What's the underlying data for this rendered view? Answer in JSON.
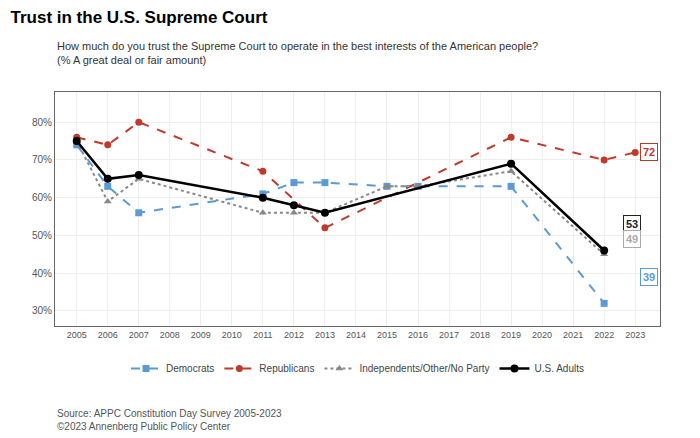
{
  "chart_data": {
    "type": "line",
    "title": "Trust in the U.S. Supreme Court",
    "subtitle": "How much do you trust the Supreme Court to operate in the best interests of the American people?\n(% A great deal or fair amount)",
    "source": "Source: APPC Constitution Day Survey 2005-2023\n©2023 Annenberg Public Policy Center",
    "series": [
      {
        "name": "Democrats",
        "color": "#5b9bd5",
        "marker": "square",
        "line_style": "dash",
        "x": [
          2005,
          2006,
          2007,
          2011,
          2012,
          2013,
          2015,
          2016,
          2019,
          2022
        ],
        "values": [
          74,
          63,
          56,
          61,
          64,
          64,
          63,
          63,
          63,
          32
        ]
      },
      {
        "name": "Republicans",
        "color": "#c0392b",
        "marker": "circle",
        "line_style": "dash",
        "x": [
          2005,
          2006,
          2007,
          2011,
          2013,
          2019,
          2022,
          2023
        ],
        "values": [
          76,
          74,
          80,
          67,
          52,
          76,
          70,
          72
        ]
      },
      {
        "name": "Independents/Other/No Party",
        "color": "#888888",
        "marker": "triangle-up",
        "line_style": "dot",
        "x": [
          2005,
          2006,
          2007,
          2011,
          2012,
          2013,
          2015,
          2016,
          2019,
          2022
        ],
        "values": [
          75,
          59,
          65,
          56,
          56,
          56,
          63,
          63,
          67,
          45
        ]
      },
      {
        "name": "U.S. Adults",
        "color": "#000000",
        "marker": "circle",
        "line_style": "solid",
        "x": [
          2005,
          2006,
          2007,
          2011,
          2012,
          2013,
          2019,
          2022
        ],
        "values": [
          75,
          65,
          66,
          60,
          58,
          56,
          69,
          46
        ]
      }
    ],
    "annotations": [
      {
        "text": "72",
        "x": 2023.15,
        "y": 72,
        "color": "#c0392b"
      },
      {
        "text": "53",
        "x": 2022.6,
        "y": 53,
        "color": "#222222"
      },
      {
        "text": "49",
        "x": 2022.6,
        "y": 49,
        "color": "#aaaaaa"
      },
      {
        "text": "39",
        "x": 2023.15,
        "y": 39,
        "color": "#5b9bd5"
      }
    ],
    "xlim": [
      2004.3,
      2023.8
    ],
    "xticks": [
      2005,
      2006,
      2007,
      2008,
      2009,
      2010,
      2011,
      2012,
      2013,
      2014,
      2015,
      2016,
      2017,
      2018,
      2019,
      2020,
      2021,
      2022,
      2023
    ],
    "ylim": [
      26,
      88
    ],
    "yticks": [
      {
        "value": 30,
        "label": "30%"
      },
      {
        "value": 40,
        "label": "40%"
      },
      {
        "value": 50,
        "label": "50%"
      },
      {
        "value": 60,
        "label": "60%"
      },
      {
        "value": 70,
        "label": "70%"
      },
      {
        "value": 80,
        "label": "80%"
      }
    ],
    "grid": true,
    "legend": "bottom"
  }
}
